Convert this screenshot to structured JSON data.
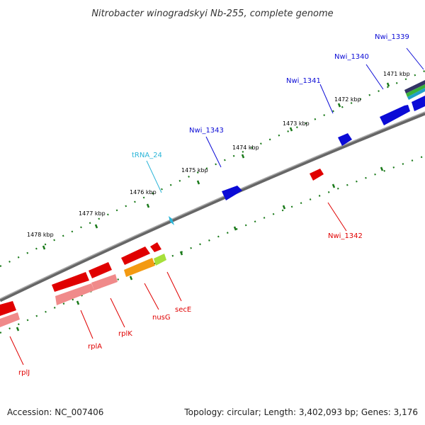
{
  "title": "Nitrobacter winogradskyi Nb-255, complete genome",
  "footer": {
    "accession": "Accession: NC_007406",
    "topology": "Topology: circular; Length: 3,402,093 bp; Genes: 3,176"
  },
  "colors": {
    "forward_gene": "#0b0bd6",
    "reverse_gene": "#e00000",
    "rrna_light": "#f08a8a",
    "trna": "#2bb5d8",
    "orange": "#f39a12",
    "lime": "#a6e03a",
    "backbone": "#777777",
    "tick": "#1a7a1a"
  },
  "kbp_labels": [
    "1471 kbp",
    "1472 kbp",
    "1473 kbp",
    "1474 kbp",
    "1475 kbp",
    "1476 kbp",
    "1477 kbp",
    "1478 kbp"
  ],
  "forward_labels": [
    "Nwi_1339",
    "Nwi_1340",
    "Nwi_1341",
    "Nwi_1343"
  ],
  "trna_label": "tRNA_24",
  "reverse_labels": [
    "Nwi_1342",
    "secE",
    "nusG",
    "rplK",
    "rplA",
    "rplJ"
  ]
}
